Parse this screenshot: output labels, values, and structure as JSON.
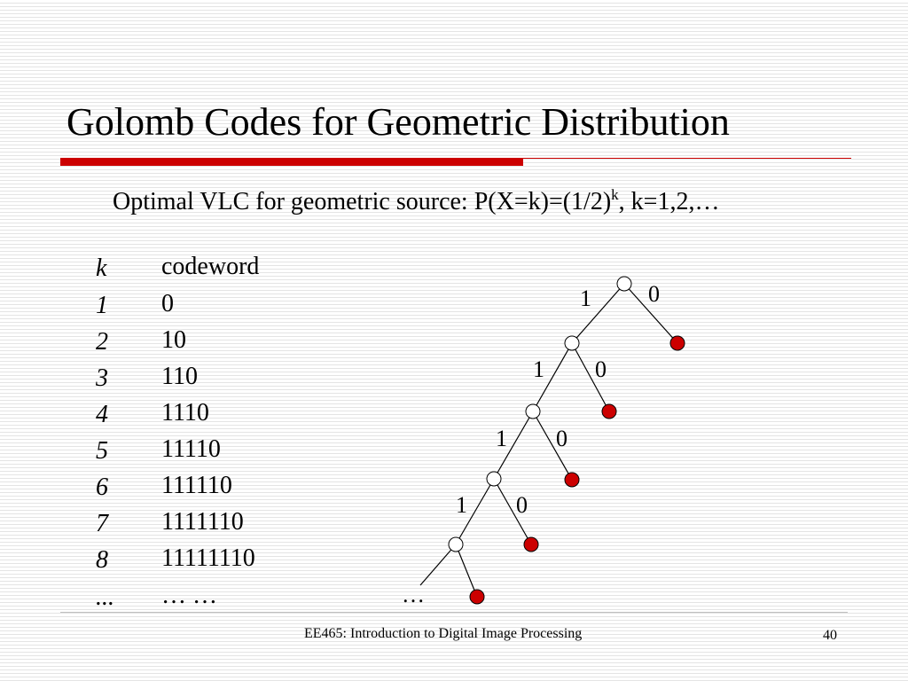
{
  "slide": {
    "title": "Golomb Codes for Geometric Distribution",
    "subtitle_main": "Optimal VLC for geometric source: P(X=k)=(1/2)",
    "subtitle_sup": "k",
    "subtitle_tail": ", k=1,2,…"
  },
  "table": {
    "header_k": "k",
    "header_codeword": "codeword",
    "rows": [
      {
        "k": "1",
        "codeword": "0"
      },
      {
        "k": "2",
        "codeword": "10"
      },
      {
        "k": "3",
        "codeword": "110"
      },
      {
        "k": "4",
        "codeword": "1110"
      },
      {
        "k": "5",
        "codeword": "11110"
      },
      {
        "k": "6",
        "codeword": "111110"
      },
      {
        "k": "7",
        "codeword": "1111110"
      },
      {
        "k": "8",
        "codeword": "11111110"
      },
      {
        "k": "...",
        "codeword": "… …"
      }
    ]
  },
  "tree": {
    "branch_labels": [
      "1",
      "0",
      "1",
      "0",
      "1",
      "0",
      "1",
      "0"
    ],
    "ellipsis": "…",
    "colors": {
      "leaf": "#cc0000",
      "internal": "#ffffff",
      "edge": "#000000"
    }
  },
  "footer": {
    "course": "EE465: Introduction to Digital Image Processing",
    "page_number": "40"
  }
}
